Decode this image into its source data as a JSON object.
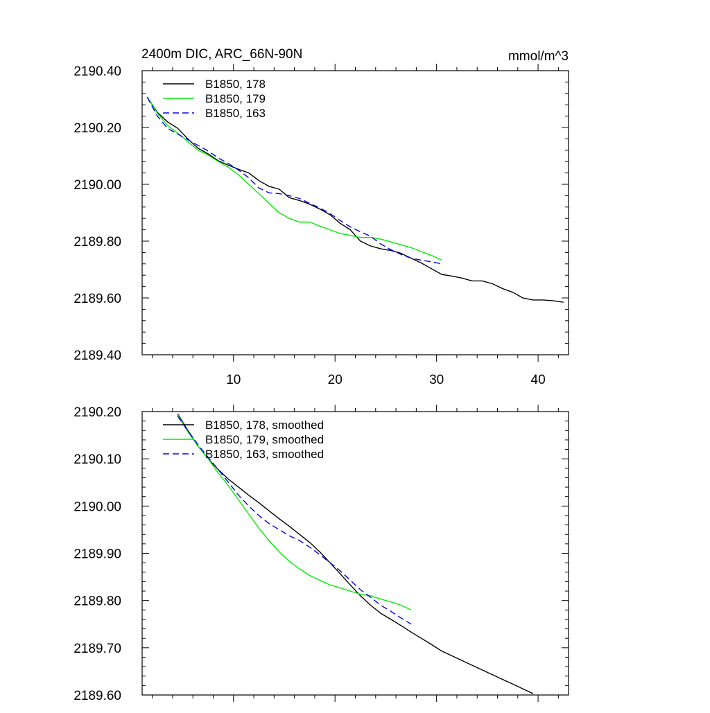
{
  "chart_data": [
    {
      "type": "line",
      "title": "2400m DIC, ARC_66N-90N",
      "units": "mmol/m^3",
      "xlim": [
        1,
        43
      ],
      "ylim": [
        2189.4,
        2190.4
      ],
      "xticks": [
        10,
        20,
        30,
        40
      ],
      "xtick_labels": [
        "10",
        "20",
        "30",
        "40"
      ],
      "yticks": [
        2189.4,
        2189.6,
        2189.8,
        2190.0,
        2190.2,
        2190.4
      ],
      "ytick_labels": [
        "2189.40",
        "2189.60",
        "2189.80",
        "2190.00",
        "2190.20",
        "2190.40"
      ],
      "legend_position": "top-left",
      "series": [
        {
          "name": "B1850, 178",
          "color": "#000000",
          "dash": "solid",
          "x": [
            1.5,
            2.5,
            3.5,
            4.5,
            5.5,
            6.5,
            7.5,
            8.5,
            9.5,
            10.5,
            11.5,
            12.5,
            13.5,
            14.5,
            15.5,
            16.5,
            17.5,
            18.5,
            19.5,
            20.5,
            21.5,
            22.5,
            23.5,
            24.5,
            25.5,
            26.5,
            27.5,
            28.5,
            29.5,
            30.5,
            31.5,
            32.5,
            33.5,
            34.5,
            35.5,
            36.5,
            37.5,
            38.5,
            39.5,
            40.5,
            41.5,
            42.5
          ],
          "y": [
            2190.307,
            2190.253,
            2190.22,
            2190.197,
            2190.16,
            2190.127,
            2190.107,
            2190.083,
            2190.067,
            2190.053,
            2190.04,
            2190.013,
            2189.993,
            2189.983,
            2189.953,
            2189.943,
            2189.93,
            2189.913,
            2189.893,
            2189.863,
            2189.84,
            2189.8,
            2189.783,
            2189.773,
            2189.767,
            2189.757,
            2189.74,
            2189.723,
            2189.703,
            2189.683,
            2189.677,
            2189.67,
            2189.66,
            2189.66,
            2189.65,
            2189.633,
            2189.62,
            2189.6,
            2189.593,
            2189.593,
            2189.59,
            2189.585
          ]
        },
        {
          "name": "B1850, 179",
          "color": "#00ee00",
          "dash": "solid",
          "x": [
            1.5,
            2.5,
            3.5,
            4.5,
            5.5,
            6.5,
            7.5,
            8.5,
            9.5,
            10.5,
            11.5,
            12.5,
            13.5,
            14.5,
            15.5,
            16.5,
            17.5,
            18.5,
            19.5,
            20.5,
            21.5,
            22.5,
            23.5,
            24.5,
            25.5,
            26.5,
            27.5,
            28.5,
            29.5,
            30.5
          ],
          "y": [
            2190.307,
            2190.25,
            2190.207,
            2190.18,
            2190.15,
            2190.12,
            2190.103,
            2190.08,
            2190.06,
            2190.033,
            2190.0,
            2189.967,
            2189.933,
            2189.9,
            2189.88,
            2189.867,
            2189.867,
            2189.853,
            2189.84,
            2189.827,
            2189.82,
            2189.813,
            2189.813,
            2189.807,
            2189.797,
            2189.787,
            2189.777,
            2189.763,
            2189.75,
            2189.733
          ]
        },
        {
          "name": "B1850, 163",
          "color": "#0000ee",
          "dash": "dashed",
          "x": [
            1.5,
            2.5,
            3.5,
            4.5,
            5.5,
            6.5,
            7.5,
            8.5,
            9.5,
            10.5,
            11.5,
            12.5,
            13.5,
            14.5,
            15.5,
            16.5,
            17.5,
            18.5,
            19.5,
            20.5,
            21.5,
            22.5,
            23.5,
            24.5,
            25.5,
            26.5,
            27.5,
            28.5,
            29.5,
            30.5
          ],
          "y": [
            2190.307,
            2190.24,
            2190.197,
            2190.177,
            2190.157,
            2190.137,
            2190.117,
            2190.093,
            2190.073,
            2190.05,
            2190.023,
            2189.987,
            2189.97,
            2189.967,
            2189.96,
            2189.95,
            2189.933,
            2189.917,
            2189.897,
            2189.873,
            2189.85,
            2189.833,
            2189.817,
            2189.79,
            2189.77,
            2189.753,
            2189.74,
            2189.733,
            2189.727,
            2189.72
          ]
        }
      ]
    },
    {
      "type": "line",
      "title": "",
      "xlim": [
        1,
        43
      ],
      "ylim": [
        2189.6,
        2190.2
      ],
      "xticks": [
        10,
        20,
        30,
        40
      ],
      "xtick_labels": [],
      "yticks": [
        2189.6,
        2189.7,
        2189.8,
        2189.9,
        2190.0,
        2190.1,
        2190.2
      ],
      "ytick_labels": [
        "2189.60",
        "2189.70",
        "2189.80",
        "2189.90",
        "2190.00",
        "2190.10",
        "2190.20"
      ],
      "legend_position": "top-left",
      "series": [
        {
          "name": "B1850, 178, smoothed",
          "color": "#000000",
          "dash": "solid",
          "x": [
            4.5,
            5.5,
            6.5,
            7.5,
            8.5,
            9.5,
            10.5,
            11.5,
            12.5,
            13.5,
            14.5,
            15.5,
            16.5,
            17.5,
            18.5,
            19.5,
            20.5,
            21.5,
            22.5,
            23.5,
            24.5,
            25.5,
            26.5,
            27.5,
            28.5,
            29.5,
            30.5,
            31.5,
            32.5,
            33.5,
            34.5,
            35.5,
            36.5,
            37.5,
            38.5,
            39.5
          ],
          "y": [
            2190.195,
            2190.16,
            2190.127,
            2190.1,
            2190.077,
            2190.057,
            2190.04,
            2190.023,
            2190.007,
            2189.99,
            2189.973,
            2189.957,
            2189.94,
            2189.923,
            2189.903,
            2189.88,
            2189.857,
            2189.833,
            2189.81,
            2189.79,
            2189.773,
            2189.76,
            2189.747,
            2189.733,
            2189.72,
            2189.707,
            2189.693,
            2189.683,
            2189.673,
            2189.663,
            2189.653,
            2189.643,
            2189.633,
            2189.623,
            2189.613,
            2189.603
          ]
        },
        {
          "name": "B1850, 179, smoothed",
          "color": "#00ee00",
          "dash": "solid",
          "x": [
            4.5,
            5.5,
            6.5,
            7.5,
            8.5,
            9.5,
            10.5,
            11.5,
            12.5,
            13.5,
            14.5,
            15.5,
            16.5,
            17.5,
            18.5,
            19.5,
            20.5,
            21.5,
            22.5,
            23.5,
            24.5,
            25.5,
            26.5,
            27.5
          ],
          "y": [
            2190.193,
            2190.157,
            2190.127,
            2190.1,
            2190.07,
            2190.043,
            2190.013,
            2189.983,
            2189.953,
            2189.927,
            2189.903,
            2189.883,
            2189.867,
            2189.853,
            2189.843,
            2189.833,
            2189.827,
            2189.82,
            2189.813,
            2189.81,
            2189.803,
            2189.797,
            2189.79,
            2189.78
          ]
        },
        {
          "name": "B1850, 163, smoothed",
          "color": "#0000ee",
          "dash": "dashed",
          "x": [
            4.5,
            5.5,
            6.5,
            7.5,
            8.5,
            9.5,
            10.5,
            11.5,
            12.5,
            13.5,
            14.5,
            15.5,
            16.5,
            17.5,
            18.5,
            19.5,
            20.5,
            21.5,
            22.5,
            23.5,
            24.5,
            25.5,
            26.5,
            27.5
          ],
          "y": [
            2190.19,
            2190.16,
            2190.13,
            2190.103,
            2190.077,
            2190.05,
            2190.023,
            2190.0,
            2189.98,
            2189.963,
            2189.95,
            2189.937,
            2189.927,
            2189.913,
            2189.897,
            2189.88,
            2189.863,
            2189.843,
            2189.823,
            2189.807,
            2189.79,
            2189.777,
            2189.763,
            2189.75
          ]
        }
      ]
    }
  ]
}
